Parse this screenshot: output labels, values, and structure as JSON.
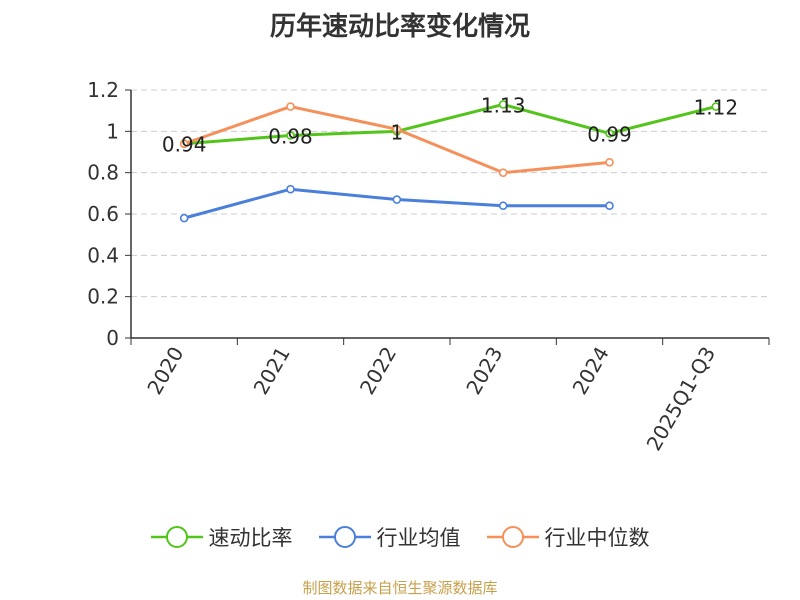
{
  "chart_data": {
    "type": "line",
    "title": "历年速动比率变化情况",
    "categories": [
      "2020",
      "2021",
      "2022",
      "2023",
      "2024",
      "2025Q1-Q3"
    ],
    "ylim": [
      0,
      1.2
    ],
    "yticks": [
      "0",
      "0.2",
      "0.4",
      "0.6",
      "0.8",
      "1",
      "1.2"
    ],
    "grid": true,
    "legend_position": "bottom",
    "series": [
      {
        "name": "速动比率",
        "color": "#52c41a",
        "values": [
          0.94,
          0.98,
          1.0,
          1.13,
          0.99,
          1.12
        ],
        "labels": [
          "0.94",
          "0.98",
          "1",
          "1.13",
          "0.99",
          "1.12"
        ]
      },
      {
        "name": "行业均值",
        "color": "#4a7fdb",
        "values": [
          0.58,
          0.72,
          0.67,
          0.64,
          0.64,
          null
        ]
      },
      {
        "name": "行业中位数",
        "color": "#f5905a",
        "values": [
          0.94,
          1.12,
          1.01,
          0.8,
          0.85,
          null
        ]
      }
    ]
  },
  "footer": {
    "source": "制图数据来自恒生聚源数据库"
  }
}
